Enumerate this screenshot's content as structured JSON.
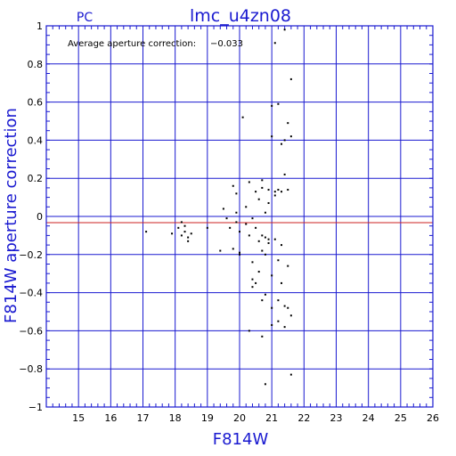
{
  "colors": {
    "axis": "#1a1ad0",
    "grid": "#1a1ad0",
    "reference_line": "#cc2222",
    "points": "#000000"
  },
  "header": {
    "detector": "PC",
    "title": "lmc_u4zn08"
  },
  "annotation": {
    "label": "Average aperture correction:",
    "value": "−0.033"
  },
  "chart_data": {
    "type": "scatter",
    "title": "lmc_u4zn08",
    "subtitle": "PC",
    "xlabel": "F814W",
    "ylabel": "F814W aperture correction",
    "xlim": [
      14,
      26
    ],
    "ylim": [
      -1,
      1
    ],
    "grid": true,
    "xticks": [
      15,
      16,
      17,
      18,
      19,
      20,
      21,
      22,
      23,
      24,
      25,
      26
    ],
    "yticks": [
      -1,
      -0.8,
      -0.6,
      -0.4,
      -0.2,
      0,
      0.2,
      0.4,
      0.6,
      0.8,
      1
    ],
    "ytick_labels": [
      "−1",
      "−0.8",
      "−0.6",
      "−0.4",
      "−0.2",
      "0",
      "0.2",
      "0.4",
      "0.6",
      "0.8",
      "1"
    ],
    "reference_lines": [
      {
        "y": 0,
        "name": "zero"
      },
      {
        "y": -0.033,
        "name": "average"
      }
    ],
    "series": [
      {
        "points": [
          [
            17.1,
            -0.08
          ],
          [
            17.9,
            -0.09
          ],
          [
            18.1,
            -0.06
          ],
          [
            18.2,
            -0.03
          ],
          [
            18.2,
            -0.1
          ],
          [
            18.3,
            -0.05
          ],
          [
            18.3,
            -0.08
          ],
          [
            18.4,
            -0.11
          ],
          [
            18.4,
            -0.13
          ],
          [
            18.5,
            -0.09
          ],
          [
            19.0,
            -0.06
          ],
          [
            19.4,
            -0.18
          ],
          [
            19.5,
            0.04
          ],
          [
            19.6,
            -0.01
          ],
          [
            19.7,
            -0.06
          ],
          [
            19.8,
            0.16
          ],
          [
            19.8,
            -0.17
          ],
          [
            19.9,
            0.12
          ],
          [
            19.9,
            0.02
          ],
          [
            19.9,
            -0.03
          ],
          [
            20.0,
            -0.08
          ],
          [
            20.0,
            -0.2
          ],
          [
            20.0,
            -0.19
          ],
          [
            20.1,
            0.52
          ],
          [
            20.2,
            0.05
          ],
          [
            20.2,
            -0.04
          ],
          [
            20.3,
            0.18
          ],
          [
            20.3,
            -0.1
          ],
          [
            20.3,
            -0.6
          ],
          [
            20.4,
            -0.33
          ],
          [
            20.4,
            -0.37
          ],
          [
            20.4,
            -0.24
          ],
          [
            20.4,
            -0.01
          ],
          [
            20.5,
            0.13
          ],
          [
            20.5,
            -0.06
          ],
          [
            20.5,
            -0.35
          ],
          [
            20.6,
            0.09
          ],
          [
            20.6,
            -0.13
          ],
          [
            20.6,
            -0.29
          ],
          [
            20.7,
            0.19
          ],
          [
            20.7,
            0.15
          ],
          [
            20.7,
            -0.1
          ],
          [
            20.7,
            -0.18
          ],
          [
            20.7,
            -0.44
          ],
          [
            20.7,
            -0.63
          ],
          [
            20.8,
            0.02
          ],
          [
            20.8,
            -0.11
          ],
          [
            20.8,
            -0.2
          ],
          [
            20.8,
            -0.41
          ],
          [
            20.8,
            -0.88
          ],
          [
            20.9,
            0.14
          ],
          [
            20.9,
            0.07
          ],
          [
            20.9,
            -0.12
          ],
          [
            20.9,
            -0.14
          ],
          [
            21.0,
            0.58
          ],
          [
            21.0,
            0.42
          ],
          [
            21.0,
            -0.31
          ],
          [
            21.0,
            -0.48
          ],
          [
            21.0,
            -0.57
          ],
          [
            21.1,
            0.91
          ],
          [
            21.1,
            0.13
          ],
          [
            21.1,
            0.11
          ],
          [
            21.1,
            -0.12
          ],
          [
            21.2,
            0.59
          ],
          [
            21.2,
            0.14
          ],
          [
            21.2,
            -0.44
          ],
          [
            21.2,
            -0.23
          ],
          [
            21.2,
            -0.55
          ],
          [
            21.3,
            0.38
          ],
          [
            21.3,
            0.13
          ],
          [
            21.3,
            -0.15
          ],
          [
            21.3,
            -0.35
          ],
          [
            21.4,
            0.98
          ],
          [
            21.4,
            0.4
          ],
          [
            21.4,
            0.22
          ],
          [
            21.4,
            -0.47
          ],
          [
            21.4,
            -0.58
          ],
          [
            21.5,
            0.49
          ],
          [
            21.5,
            0.14
          ],
          [
            21.5,
            -0.26
          ],
          [
            21.5,
            -0.48
          ],
          [
            21.6,
            0.72
          ],
          [
            21.6,
            0.42
          ],
          [
            21.6,
            -0.52
          ],
          [
            21.6,
            -0.83
          ]
        ]
      }
    ]
  }
}
